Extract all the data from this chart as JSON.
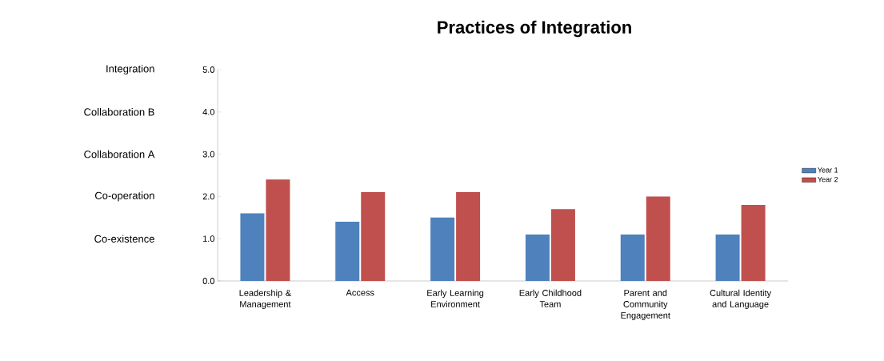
{
  "chart_data": {
    "type": "bar",
    "title": "Practices of Integration",
    "categories": [
      "Leadership & Management",
      "Access",
      "Early Learning Environment",
      "Early Childhood Team",
      "Parent and Community Engagement",
      "Cultural Identity and Language"
    ],
    "series": [
      {
        "name": "Year 1",
        "color": "#4f81bd",
        "values": [
          1.6,
          1.4,
          1.5,
          1.1,
          1.1,
          1.1
        ]
      },
      {
        "name": "Year 2",
        "color": "#c0504d",
        "values": [
          2.4,
          2.1,
          2.1,
          1.7,
          2.0,
          1.8
        ]
      }
    ],
    "ylim": [
      0,
      5
    ],
    "yticks": [
      {
        "value": 0,
        "label": "0.0"
      },
      {
        "value": 1,
        "label": "1.0"
      },
      {
        "value": 2,
        "label": "2.0"
      },
      {
        "value": 3,
        "label": "3.0"
      },
      {
        "value": 4,
        "label": "4.0"
      },
      {
        "value": 5,
        "label": "5.0"
      }
    ],
    "annotations": [
      "Integration",
      "Collaboration B",
      "Collaboration A",
      "Co-operation",
      "Co-existence"
    ],
    "legend": "right",
    "grid": false
  }
}
